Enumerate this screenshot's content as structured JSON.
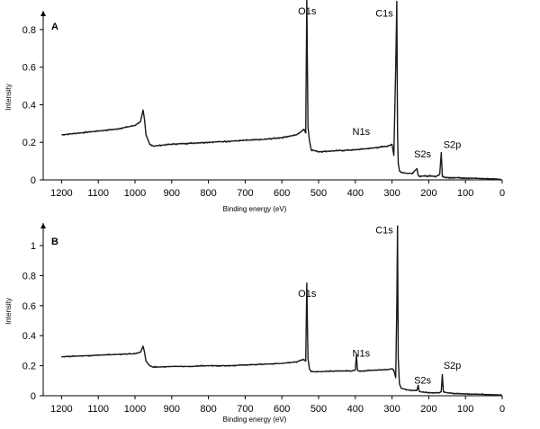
{
  "chart_data": [
    {
      "type": "line",
      "panel_label": "A",
      "xlabel": "Binding energy (eV)",
      "ylabel": "Intensity",
      "xlim": [
        1250,
        0
      ],
      "xticks": [
        1200,
        1100,
        1000,
        900,
        800,
        700,
        600,
        500,
        400,
        300,
        200,
        100,
        0
      ],
      "ylim": [
        0,
        0.9
      ],
      "yticks": [
        0,
        0.2,
        0.4,
        0.6,
        0.8
      ],
      "y_axis_arrow": true,
      "grid": false,
      "series": [
        {
          "color": "#1a1a1a",
          "x": [
            1200,
            1150,
            1100,
            1050,
            1000,
            985,
            978,
            974,
            970,
            960,
            950,
            900,
            850,
            800,
            750,
            700,
            650,
            600,
            560,
            545,
            540,
            535,
            532,
            529,
            525,
            520,
            500,
            450,
            400,
            350,
            310,
            300,
            295,
            290,
            287,
            285,
            283,
            280,
            275,
            260,
            245,
            232,
            229,
            226,
            220,
            200,
            180,
            170,
            166,
            163,
            160,
            150,
            130,
            100,
            70,
            40,
            20,
            10,
            0
          ],
          "y": [
            0.24,
            0.25,
            0.26,
            0.27,
            0.29,
            0.31,
            0.37,
            0.32,
            0.24,
            0.19,
            0.18,
            0.19,
            0.195,
            0.2,
            0.205,
            0.21,
            0.215,
            0.225,
            0.24,
            0.26,
            0.27,
            0.25,
            0.97,
            0.28,
            0.21,
            0.16,
            0.15,
            0.155,
            0.16,
            0.17,
            0.18,
            0.19,
            0.13,
            0.6,
            0.95,
            0.25,
            0.09,
            0.05,
            0.04,
            0.035,
            0.035,
            0.06,
            0.025,
            0.02,
            0.02,
            0.02,
            0.018,
            0.03,
            0.145,
            0.02,
            0.015,
            0.012,
            0.012,
            0.01,
            0.008,
            0.006,
            0.005,
            0.004,
            0.0
          ]
        }
      ],
      "annotations": [
        {
          "text": "O1s",
          "x": 556,
          "y": 0.88
        },
        {
          "text": "C1s",
          "x": 345,
          "y": 0.87
        },
        {
          "text": "N1s",
          "x": 408,
          "y": 0.24
        },
        {
          "text": "S2s",
          "x": 240,
          "y": 0.12
        },
        {
          "text": "S2p",
          "x": 160,
          "y": 0.17
        }
      ]
    },
    {
      "type": "line",
      "panel_label": "B",
      "xlabel": "Binding energy (eV)",
      "ylabel": "Intensity",
      "xlim": [
        1250,
        0
      ],
      "xticks": [
        1200,
        1100,
        1000,
        900,
        800,
        700,
        600,
        500,
        400,
        300,
        200,
        100,
        0
      ],
      "ylim": [
        0,
        1.15
      ],
      "yticks": [
        0,
        0.2,
        0.4,
        0.6,
        0.8,
        1
      ],
      "y_axis_arrow": true,
      "grid": false,
      "series": [
        {
          "color": "#1a1a1a",
          "x": [
            1200,
            1150,
            1100,
            1050,
            1000,
            985,
            978,
            974,
            970,
            960,
            950,
            900,
            850,
            800,
            750,
            700,
            650,
            600,
            560,
            545,
            540,
            535,
            532,
            529,
            525,
            520,
            500,
            450,
            410,
            400,
            397,
            394,
            390,
            380,
            350,
            310,
            300,
            295,
            290,
            287,
            285,
            283,
            280,
            275,
            260,
            245,
            232,
            229,
            226,
            220,
            200,
            180,
            170,
            166,
            163,
            160,
            150,
            130,
            100,
            70,
            40,
            20,
            10,
            0
          ],
          "y": [
            0.26,
            0.265,
            0.27,
            0.275,
            0.28,
            0.29,
            0.33,
            0.29,
            0.23,
            0.2,
            0.19,
            0.195,
            0.195,
            0.2,
            0.2,
            0.205,
            0.21,
            0.215,
            0.225,
            0.24,
            0.24,
            0.23,
            0.75,
            0.25,
            0.18,
            0.16,
            0.16,
            0.165,
            0.165,
            0.17,
            0.27,
            0.17,
            0.165,
            0.165,
            0.17,
            0.175,
            0.18,
            0.17,
            0.12,
            0.6,
            1.13,
            0.25,
            0.08,
            0.05,
            0.04,
            0.035,
            0.035,
            0.07,
            0.03,
            0.025,
            0.02,
            0.02,
            0.02,
            0.03,
            0.14,
            0.025,
            0.02,
            0.015,
            0.012,
            0.01,
            0.008,
            0.006,
            0.005,
            0.004
          ]
        }
      ],
      "annotations": [
        {
          "text": "C1s",
          "x": 345,
          "y": 1.08
        },
        {
          "text": "O1s",
          "x": 556,
          "y": 0.66
        },
        {
          "text": "N1s",
          "x": 408,
          "y": 0.26
        },
        {
          "text": "S2s",
          "x": 240,
          "y": 0.08
        },
        {
          "text": "S2p",
          "x": 160,
          "y": 0.18
        }
      ]
    }
  ]
}
